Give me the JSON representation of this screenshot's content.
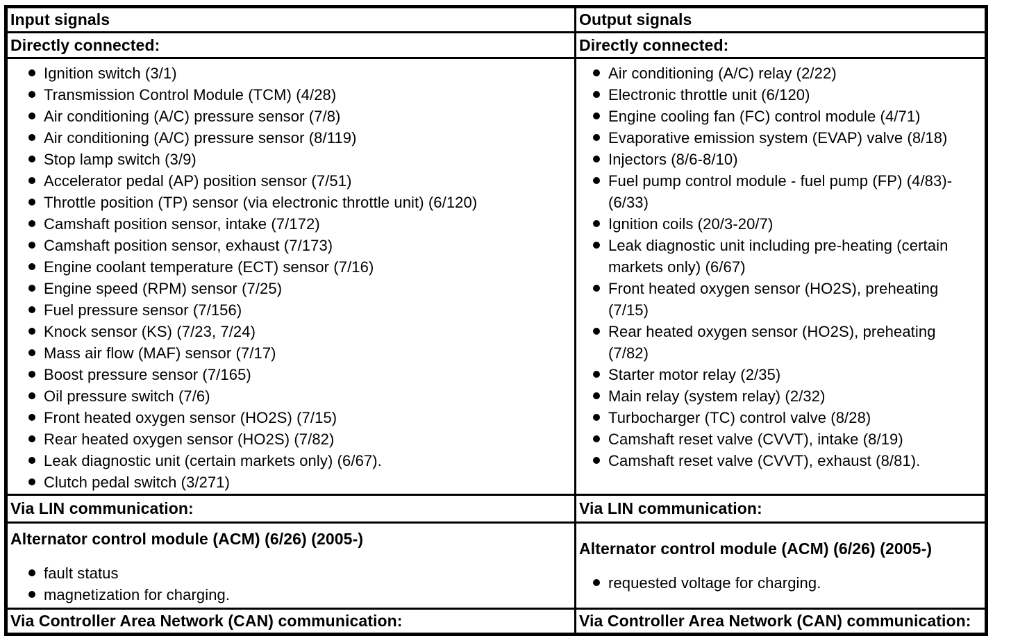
{
  "document": {
    "input": {
      "title": "Input signals",
      "directly_connected_label": "Directly connected:",
      "directly_connected_items": [
        "Ignition switch (3/1)",
        "Transmission Control Module (TCM) (4/28)",
        "Air conditioning (A/C) pressure sensor (7/8)",
        "Air conditioning (A/C) pressure sensor (8/119)",
        "Stop lamp switch (3/9)",
        "Accelerator pedal (AP) position sensor (7/51)",
        "Throttle position (TP) sensor (via electronic throttle unit) (6/120)",
        "Camshaft position sensor, intake (7/172)",
        "Camshaft position sensor, exhaust (7/173)",
        "Engine coolant temperature (ECT) sensor (7/16)",
        "Engine speed (RPM) sensor (7/25)",
        "Fuel pressure sensor (7/156)",
        "Knock sensor (KS) (7/23, 7/24)",
        "Mass air flow (MAF) sensor (7/17)",
        "Boost pressure sensor (7/165)",
        "Oil pressure switch (7/6)",
        "Front heated oxygen sensor (HO2S) (7/15)",
        "Rear heated oxygen sensor (HO2S) (7/82)",
        "Leak diagnostic unit (certain markets only) (6/67).",
        "Clutch pedal switch (3/271)"
      ],
      "via_lin_label": "Via LIN communication:",
      "acm_heading": "Alternator control module (ACM) (6/26) (2005-)",
      "acm_items": [
        "fault status",
        "magnetization for charging."
      ],
      "via_can_label": "Via Controller Area Network (CAN) communication:"
    },
    "output": {
      "title": "Output signals",
      "directly_connected_label": "Directly connected:",
      "directly_connected_items": [
        "Air conditioning (A/C) relay (2/22)",
        "Electronic throttle unit (6/120)",
        "Engine cooling fan (FC) control module (4/71)",
        "Evaporative emission system (EVAP) valve (8/18)",
        "Injectors (8/6-8/10)",
        "Fuel pump control module - fuel pump (FP) (4/83)-(6/33)",
        "Ignition coils (20/3-20/7)",
        "Leak diagnostic unit including pre-heating (certain markets only) (6/67)",
        "Front heated oxygen sensor (HO2S), preheating (7/15)",
        "Rear heated oxygen sensor (HO2S), preheating (7/82)",
        "Starter motor relay (2/35)",
        "Main relay (system relay) (2/32)",
        "Turbocharger (TC) control valve (8/28)",
        "Camshaft reset valve (CVVT), intake (8/19)",
        "Camshaft reset valve (CVVT), exhaust (8/81)."
      ],
      "via_lin_label": "Via LIN communication:",
      "acm_heading": "Alternator control module (ACM) (6/26) (2005-)",
      "acm_items": [
        "requested voltage for charging."
      ],
      "via_can_label": "Via Controller Area Network (CAN) communication:"
    }
  },
  "colors": {
    "background": "#ffffff",
    "text": "#000000",
    "border": "#000000"
  }
}
